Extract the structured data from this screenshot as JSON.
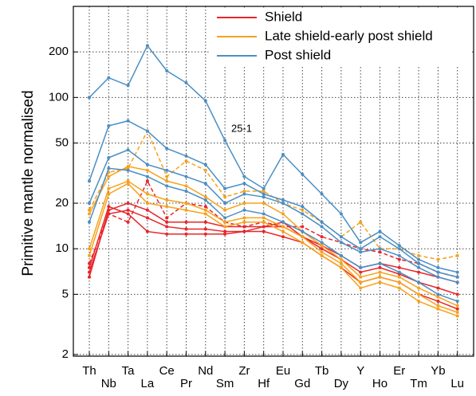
{
  "chart_data": {
    "type": "line",
    "y_label": "Primitive mantle normalised",
    "annotation": "25-1",
    "log_scale": true,
    "grid": true,
    "legend": "top-right",
    "categories": [
      "Th",
      "Nb",
      "Ta",
      "La",
      "Ce",
      "Pr",
      "Nd",
      "Sm",
      "Zr",
      "Hf",
      "Eu",
      "Gd",
      "Tb",
      "Dy",
      "Y",
      "Ho",
      "Er",
      "Tm",
      "Yb",
      "Lu"
    ],
    "ylim": [
      1.95,
      400
    ],
    "yticks": [
      2,
      5,
      10,
      20,
      50,
      100,
      200
    ],
    "series": [
      {
        "name": "Shield",
        "color": "#e8262b",
        "lines": [
          {
            "values": [
              7,
              17,
              18,
              16,
              14,
              13.5,
              13.5,
              13,
              13,
              14,
              15,
              12,
              10,
              8.5,
              7,
              7.5,
              6.8,
              6,
              5.5,
              5
            ]
          },
          {
            "values": [
              6.5,
              18,
              20,
              18,
              15,
              15,
              15,
              14,
              14,
              14,
              14,
              12,
              10.5,
              9,
              7.5,
              8,
              7.5,
              7,
              6.5,
              6
            ]
          },
          {
            "values": [
              7.5,
              19,
              17,
              13,
              12.5,
              12.5,
              12.5,
              12.5,
              13,
              13,
              12,
              11,
              9,
              7.5,
              6,
              6.5,
              6,
              5,
              4.5,
              4
            ]
          },
          {
            "values": [
              8,
              17,
              15,
              28,
              16,
              20,
              19,
              15,
              14,
              15,
              14,
              14,
              12,
              11,
              10,
              9.5,
              8.5,
              8,
              7,
              6.5
            ],
            "dashed": true
          }
        ]
      },
      {
        "name": "Late shield-early post shield",
        "color": "#f7a21b",
        "lines": [
          {
            "values": [
              9,
              23,
              27,
              20,
              19,
              18,
              17,
              14,
              15,
              15,
              13,
              11,
              9,
              7.5,
              5.5,
              6,
              5.5,
              4.5,
              4,
              3.6
            ]
          },
          {
            "values": [
              10,
              25,
              28,
              23,
              21,
              20,
              18,
              15,
              16,
              16,
              14,
              12,
              9.5,
              8,
              6,
              6.5,
              6,
              5,
              4.2,
              3.8
            ]
          },
          {
            "values": [
              17,
              30,
              35,
              33,
              28,
              26,
              22,
              18,
              20,
              20,
              17,
              13,
              10.5,
              8.5,
              6.5,
              7,
              6.5,
              5.5,
              4.8,
              4.2
            ]
          },
          {
            "values": [
              18,
              32,
              34,
              60,
              30,
              38,
              33,
              22,
              24,
              24,
              20,
              18,
              15,
              12,
              15,
              10,
              10,
              9,
              8.5,
              9
            ],
            "dashed": true
          }
        ]
      },
      {
        "name": "Post shield",
        "color": "#4a8fc4",
        "lines": [
          {
            "values": [
              100,
              135,
              120,
              220,
              150,
              125,
              95,
              52,
              30,
              25,
              42,
              31,
              23,
              17,
              11,
              13,
              10.5,
              8.5,
              7.5,
              7
            ]
          },
          {
            "values": [
              28,
              65,
              70,
              60,
              46,
              41,
              36,
              25,
              27,
              23,
              21,
              19,
              15,
              12,
              10,
              12,
              10,
              8,
              7,
              6.5
            ]
          },
          {
            "values": [
              20,
              40,
              45,
              36,
              33,
              30,
              27,
              20,
              23,
              22,
              20,
              17,
              14,
              11,
              9.5,
              10,
              9,
              7.5,
              6.5,
              6
            ]
          },
          {
            "values": [
              15,
              34,
              33,
              30,
              26,
              24,
              21,
              16,
              18,
              17,
              15,
              13,
              11,
              9,
              7.5,
              8,
              7,
              6,
              5,
              4.5
            ]
          }
        ]
      }
    ]
  }
}
